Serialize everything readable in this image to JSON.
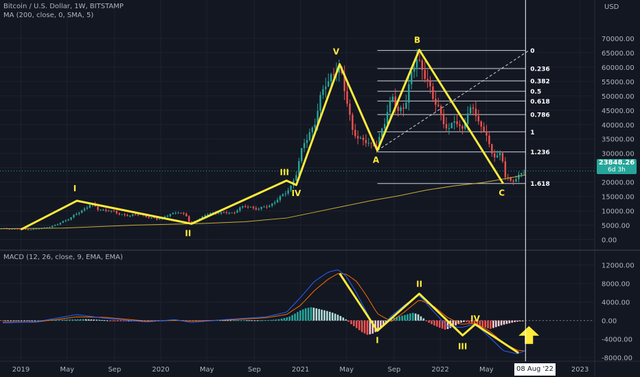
{
  "header": {
    "symbol_line": "Bitcoin / U.S. Dollar, 1W, BITSTAMP",
    "ma_line": "MA (200, close, 0, SMA, 5)",
    "macd_line": "MACD (12, 26, close, 9, EMA, EMA)",
    "currency": "USD"
  },
  "price_tag": {
    "price": "23848.26",
    "countdown": "6d 3h"
  },
  "cursor_date": "08 Aug '22",
  "colors": {
    "background": "#131722",
    "up": "#26a69a",
    "down": "#ef5350",
    "wave_line": "#ffeb3b",
    "ma_line": "#c9b037",
    "macd_line": "#2962ff",
    "signal_line": "#ff6d00",
    "arrow": "#ffeb3b"
  },
  "chart_data": [
    {
      "type": "candlestick",
      "pane": "price",
      "title": "Bitcoin / U.S. Dollar, 1W, BITSTAMP",
      "ylabel": "USD",
      "ylim": [
        -2500,
        75000
      ],
      "y_ticks": [
        "70000.00",
        "65000.00",
        "60000.00",
        "55000.00",
        "50000.00",
        "45000.00",
        "40000.00",
        "35000.00",
        "30000.00",
        "25000.00",
        "20000.00",
        "15000.00",
        "10000.00",
        "5000.00",
        "0.00"
      ],
      "x_ticks": [
        "2019",
        "May",
        "Sep",
        "2020",
        "May",
        "Sep",
        "2021",
        "May",
        "Sep",
        "2022",
        "May",
        "2023"
      ],
      "x_tick_dates": [
        2019.0,
        2019.33,
        2019.67,
        2020.0,
        2020.33,
        2020.67,
        2021.0,
        2021.33,
        2021.67,
        2022.0,
        2022.33,
        2023.0
      ],
      "xlim": [
        2018.85,
        2023.1
      ],
      "price_path": [
        [
          2018.85,
          3800
        ],
        [
          2018.95,
          3700
        ],
        [
          2019.0,
          3600
        ],
        [
          2019.05,
          3500
        ],
        [
          2019.15,
          3900
        ],
        [
          2019.25,
          5000
        ],
        [
          2019.35,
          7500
        ],
        [
          2019.42,
          9500
        ],
        [
          2019.5,
          12500
        ],
        [
          2019.55,
          10500
        ],
        [
          2019.62,
          10200
        ],
        [
          2019.7,
          9000
        ],
        [
          2019.78,
          8200
        ],
        [
          2019.85,
          9000
        ],
        [
          2019.92,
          7500
        ],
        [
          2019.98,
          7200
        ],
        [
          2020.08,
          8800
        ],
        [
          2020.12,
          9800
        ],
        [
          2020.18,
          8500
        ],
        [
          2020.21,
          5500
        ],
        [
          2020.26,
          6800
        ],
        [
          2020.32,
          8500
        ],
        [
          2020.38,
          9400
        ],
        [
          2020.45,
          9300
        ],
        [
          2020.52,
          9200
        ],
        [
          2020.56,
          11000
        ],
        [
          2020.62,
          11500
        ],
        [
          2020.7,
          10700
        ],
        [
          2020.78,
          11800
        ],
        [
          2020.82,
          13500
        ],
        [
          2020.88,
          15500
        ],
        [
          2020.93,
          18500
        ],
        [
          2020.97,
          23000
        ],
        [
          2021.02,
          33000
        ],
        [
          2021.06,
          37000
        ],
        [
          2021.1,
          40000
        ],
        [
          2021.14,
          48000
        ],
        [
          2021.18,
          55000
        ],
        [
          2021.22,
          57000
        ],
        [
          2021.27,
          59000
        ],
        [
          2021.3,
          56000
        ],
        [
          2021.33,
          50000
        ],
        [
          2021.37,
          38000
        ],
        [
          2021.42,
          34000
        ],
        [
          2021.46,
          35500
        ],
        [
          2021.5,
          33000
        ],
        [
          2021.55,
          32000
        ],
        [
          2021.58,
          38000
        ],
        [
          2021.62,
          45000
        ],
        [
          2021.66,
          49000
        ],
        [
          2021.7,
          44000
        ],
        [
          2021.75,
          48000
        ],
        [
          2021.79,
          56000
        ],
        [
          2021.83,
          63000
        ],
        [
          2021.86,
          61000
        ],
        [
          2021.9,
          57000
        ],
        [
          2021.94,
          49000
        ],
        [
          2021.98,
          47000
        ],
        [
          2022.02,
          42000
        ],
        [
          2022.06,
          37000
        ],
        [
          2022.1,
          42000
        ],
        [
          2022.15,
          38500
        ],
        [
          2022.2,
          43000
        ],
        [
          2022.24,
          46500
        ],
        [
          2022.28,
          40000
        ],
        [
          2022.32,
          38000
        ],
        [
          2022.36,
          30000
        ],
        [
          2022.4,
          29500
        ],
        [
          2022.44,
          30000
        ],
        [
          2022.46,
          22000
        ],
        [
          2022.5,
          20000
        ],
        [
          2022.54,
          21500
        ],
        [
          2022.58,
          23000
        ],
        [
          2022.61,
          23848.26
        ]
      ],
      "ma_200_sma": [
        [
          2018.85,
          3800
        ],
        [
          2019.3,
          4000
        ],
        [
          2019.8,
          5000
        ],
        [
          2020.3,
          5600
        ],
        [
          2020.6,
          6200
        ],
        [
          2020.9,
          7500
        ],
        [
          2021.1,
          9500
        ],
        [
          2021.3,
          11500
        ],
        [
          2021.5,
          13500
        ],
        [
          2021.7,
          15200
        ],
        [
          2021.9,
          17200
        ],
        [
          2022.1,
          18700
        ],
        [
          2022.3,
          19800
        ],
        [
          2022.5,
          21500
        ],
        [
          2022.61,
          22500
        ]
      ],
      "current_price": 23848.26,
      "elliott_waves": [
        {
          "label": "",
          "date": 2019.0,
          "price": 3500
        },
        {
          "label": "I",
          "date": 2019.4,
          "price": 13500
        },
        {
          "label": "II",
          "date": 2020.22,
          "price": 5500
        },
        {
          "label": "III",
          "date": 2020.9,
          "price": 20500
        },
        {
          "label": "IV",
          "date": 2020.97,
          "price": 19000
        },
        {
          "label": "V",
          "date": 2021.28,
          "price": 61000
        },
        {
          "label": "A",
          "date": 2021.55,
          "price": 31000
        },
        {
          "label": "B",
          "date": 2021.85,
          "price": 66000
        },
        {
          "label": "C",
          "date": 2022.45,
          "price": 19500
        }
      ],
      "fibonacci": {
        "x_start": 2021.55,
        "x_end": 2022.61,
        "levels": [
          {
            "label": "0",
            "price": 65800
          },
          {
            "label": "0.236",
            "price": 59500
          },
          {
            "label": "0.382",
            "price": 55200
          },
          {
            "label": "0.5",
            "price": 51600
          },
          {
            "label": "0.618",
            "price": 48200
          },
          {
            "label": "0.786",
            "price": 43500
          },
          {
            "label": "1",
            "price": 37500
          },
          {
            "label": "1.236",
            "price": 30500
          },
          {
            "label": "1.618",
            "price": 19500
          }
        ]
      }
    },
    {
      "type": "bar",
      "pane": "macd",
      "title": "MACD (12, 26, close, 9, EMA, EMA)",
      "ylim": [
        -8500,
        13000
      ],
      "y_ticks": [
        "12000.00",
        "8000.00",
        "4000.00",
        "0.00",
        "-4000.00",
        "-8000.00"
      ],
      "histogram": [
        [
          2018.87,
          -150
        ],
        [
          2018.95,
          -120
        ],
        [
          2019.05,
          -80
        ],
        [
          2019.15,
          60
        ],
        [
          2019.25,
          160
        ],
        [
          2019.35,
          220
        ],
        [
          2019.45,
          320
        ],
        [
          2019.55,
          180
        ],
        [
          2019.65,
          -40
        ],
        [
          2019.75,
          -120
        ],
        [
          2019.85,
          -90
        ],
        [
          2019.95,
          -60
        ],
        [
          2020.05,
          60
        ],
        [
          2020.15,
          110
        ],
        [
          2020.22,
          -150
        ],
        [
          2020.3,
          40
        ],
        [
          2020.4,
          90
        ],
        [
          2020.5,
          60
        ],
        [
          2020.6,
          70
        ],
        [
          2020.7,
          40
        ],
        [
          2020.78,
          110
        ],
        [
          2020.84,
          260
        ],
        [
          2020.88,
          520
        ],
        [
          2020.92,
          850
        ],
        [
          2020.96,
          1500
        ],
        [
          2021.0,
          2200
        ],
        [
          2021.04,
          2700
        ],
        [
          2021.08,
          2900
        ],
        [
          2021.12,
          2600
        ],
        [
          2021.16,
          2300
        ],
        [
          2021.2,
          2000
        ],
        [
          2021.24,
          1600
        ],
        [
          2021.28,
          1100
        ],
        [
          2021.32,
          400
        ],
        [
          2021.36,
          -700
        ],
        [
          2021.4,
          -1600
        ],
        [
          2021.44,
          -2500
        ],
        [
          2021.48,
          -3100
        ],
        [
          2021.52,
          -2800
        ],
        [
          2021.56,
          -2000
        ],
        [
          2021.6,
          -1000
        ],
        [
          2021.64,
          300
        ],
        [
          2021.68,
          700
        ],
        [
          2021.72,
          1000
        ],
        [
          2021.76,
          1300
        ],
        [
          2021.8,
          1700
        ],
        [
          2021.84,
          1400
        ],
        [
          2021.88,
          500
        ],
        [
          2021.92,
          -500
        ],
        [
          2021.96,
          -1100
        ],
        [
          2022.0,
          -1600
        ],
        [
          2022.04,
          -2000
        ],
        [
          2022.08,
          -1500
        ],
        [
          2022.12,
          -900
        ],
        [
          2022.16,
          -300
        ],
        [
          2022.2,
          -400
        ],
        [
          2022.24,
          -900
        ],
        [
          2022.28,
          -1300
        ],
        [
          2022.32,
          -1500
        ],
        [
          2022.36,
          -1800
        ],
        [
          2022.4,
          -1400
        ],
        [
          2022.44,
          -1000
        ],
        [
          2022.48,
          -700
        ],
        [
          2022.52,
          -400
        ],
        [
          2022.56,
          -200
        ],
        [
          2022.6,
          -100
        ]
      ],
      "macd": [
        [
          2018.87,
          -500
        ],
        [
          2019.1,
          -300
        ],
        [
          2019.4,
          1300
        ],
        [
          2019.6,
          500
        ],
        [
          2019.9,
          -300
        ],
        [
          2020.1,
          200
        ],
        [
          2020.22,
          -400
        ],
        [
          2020.5,
          300
        ],
        [
          2020.75,
          800
        ],
        [
          2020.9,
          1800
        ],
        [
          2021.0,
          5000
        ],
        [
          2021.1,
          8500
        ],
        [
          2021.2,
          10500
        ],
        [
          2021.27,
          11000
        ],
        [
          2021.33,
          9500
        ],
        [
          2021.4,
          6000
        ],
        [
          2021.47,
          2000
        ],
        [
          2021.55,
          -2500
        ],
        [
          2021.65,
          1000
        ],
        [
          2021.75,
          3500
        ],
        [
          2021.85,
          5500
        ],
        [
          2021.95,
          2000
        ],
        [
          2022.05,
          -1200
        ],
        [
          2022.15,
          -1500
        ],
        [
          2022.25,
          -800
        ],
        [
          2022.35,
          -3500
        ],
        [
          2022.45,
          -6500
        ],
        [
          2022.55,
          -7200
        ],
        [
          2022.61,
          -6500
        ]
      ],
      "signal": [
        [
          2018.87,
          -400
        ],
        [
          2019.1,
          -350
        ],
        [
          2019.4,
          800
        ],
        [
          2019.6,
          700
        ],
        [
          2019.9,
          -100
        ],
        [
          2020.1,
          50
        ],
        [
          2020.22,
          -100
        ],
        [
          2020.5,
          150
        ],
        [
          2020.75,
          600
        ],
        [
          2020.9,
          1300
        ],
        [
          2021.0,
          3300
        ],
        [
          2021.1,
          6500
        ],
        [
          2021.2,
          9000
        ],
        [
          2021.27,
          10200
        ],
        [
          2021.33,
          10000
        ],
        [
          2021.4,
          8500
        ],
        [
          2021.47,
          5500
        ],
        [
          2021.55,
          1500
        ],
        [
          2021.65,
          -200
        ],
        [
          2021.75,
          2000
        ],
        [
          2021.85,
          4500
        ],
        [
          2021.95,
          3200
        ],
        [
          2022.05,
          700
        ],
        [
          2022.15,
          -800
        ],
        [
          2022.25,
          -600
        ],
        [
          2022.35,
          -2200
        ],
        [
          2022.45,
          -4800
        ],
        [
          2022.55,
          -6400
        ],
        [
          2022.61,
          -6600
        ]
      ],
      "waves": [
        {
          "label": "",
          "date": 2021.28,
          "value": 10200
        },
        {
          "label": "I",
          "date": 2021.55,
          "value": -2200
        },
        {
          "label": "II",
          "date": 2021.85,
          "value": 5800
        },
        {
          "label": "III",
          "date": 2022.16,
          "value": -3200
        },
        {
          "label": "IV",
          "date": 2022.25,
          "value": -800
        },
        {
          "label": "",
          "date": 2022.56,
          "value": -7000
        }
      ]
    }
  ]
}
